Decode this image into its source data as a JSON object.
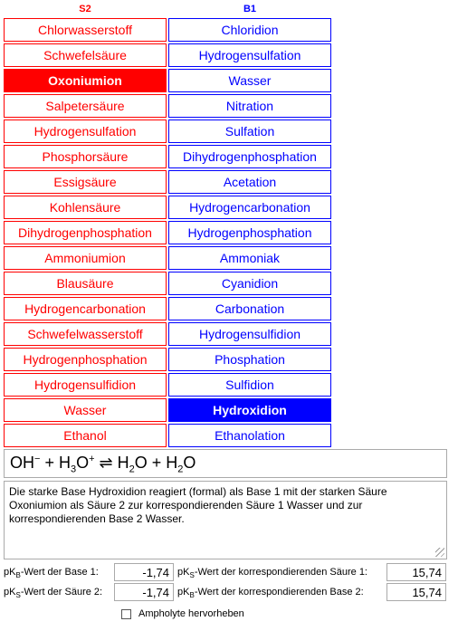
{
  "headers": {
    "s2": "S2",
    "b1": "B1"
  },
  "acids": [
    "Chlorwasserstoff",
    "Schwefelsäure",
    "Oxoniumion",
    "Salpetersäure",
    "Hydrogensulfation",
    "Phosphorsäure",
    "Essigsäure",
    "Kohlensäure",
    "Dihydrogenphosphation",
    "Ammoniumion",
    "Blausäure",
    "Hydrogencarbonation",
    "Schwefelwasserstoff",
    "Hydrogenphosphation",
    "Hydrogensulfidion",
    "Wasser",
    "Ethanol"
  ],
  "bases": [
    "Chloridion",
    "Hydrogensulfation",
    "Wasser",
    "Nitration",
    "Sulfation",
    "Dihydrogenphosphation",
    "Acetation",
    "Hydrogencarbonation",
    "Hydrogenphosphation",
    "Ammoniak",
    "Cyanidion",
    "Carbonation",
    "Hydrogensulfidion",
    "Phosphation",
    "Sulfidion",
    "Hydroxidion",
    "Ethanolation"
  ],
  "selected": {
    "acid": "Oxoniumion",
    "base": "Hydroxidion"
  },
  "colors": {
    "acid": "#ff0000",
    "base": "#0000ff"
  },
  "equation": {
    "t1": "OH",
    "t1_sup": "−",
    "t2": " + H",
    "t2_sub": "3",
    "t3": "O",
    "t3_sup": "+",
    "t4": " ⇌ H",
    "t4_sub": "2",
    "t5": "O + H",
    "t5_sub": "2",
    "t6": "O"
  },
  "explanation": "Die starke Base Hydroxidion reagiert (formal) als Base 1 mit der starken Säure Oxoniumion als Säure 2 zur korrespondierenden Säure 1 Wasser und zur korrespondierenden Base 2 Wasser.",
  "pk": {
    "base1": {
      "pre": "pK",
      "sub": "B",
      "post": "-Wert der Base 1:",
      "value": "-1,74"
    },
    "acid1": {
      "pre": "pK",
      "sub": "S",
      "post": "-Wert der korrespondierenden Säure 1:",
      "value": "15,74"
    },
    "acid2": {
      "pre": "pK",
      "sub": "S",
      "post": "-Wert der Säure 2:",
      "value": "-1,74"
    },
    "base2": {
      "pre": "pK",
      "sub": "B",
      "post": "-Wert der korrespondierenden Base 2:",
      "value": "15,74"
    }
  },
  "ampholyte": {
    "label": "Ampholyte hervorheben",
    "checked": false
  }
}
